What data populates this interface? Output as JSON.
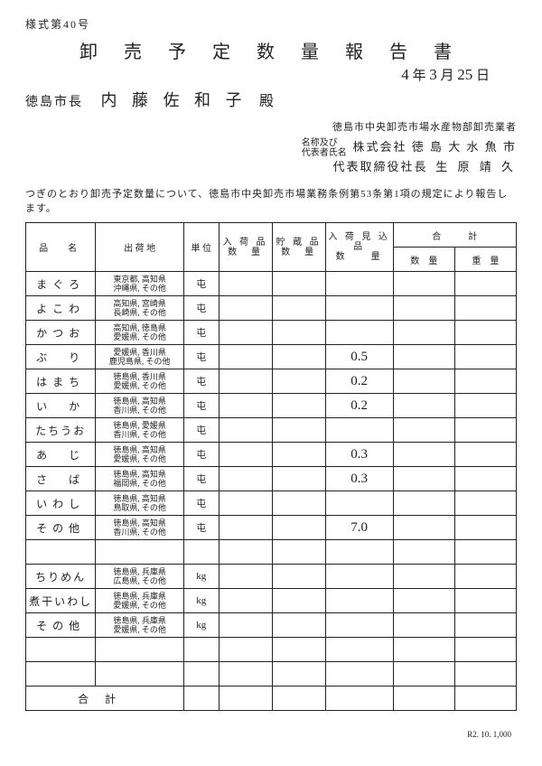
{
  "form_number": "様式第40号",
  "title": "卸 売 予 定 数 量 報 告 書",
  "date": {
    "year": "4",
    "month": "3",
    "day": "25",
    "year_suffix": "年",
    "month_suffix": "月",
    "day_suffix": "日"
  },
  "addressee": {
    "role": "徳島市長",
    "name": "内 藤  佐 和 子",
    "suffix": "殿"
  },
  "submitter": {
    "org_line": "徳島市中央卸売市場水産物部卸売業者",
    "name_label": "名称及び\n代表者氏名",
    "company": "株式会社 徳 島 大 水 魚 市",
    "rep_title": "代表取締役社長",
    "rep_name": "生 原  靖 久"
  },
  "intro": "つぎのとおり卸売予定数量について、徳島市中央卸売市場業務条例第53条第1項の規定により報告します。",
  "headers": {
    "item": "品　名",
    "origin": "出 荷 地",
    "unit": "単 位",
    "incoming": "入 荷 品\n数　量",
    "stored": "貯 蔵 品\n数　量",
    "expected": "入 荷 見 込 品\n数　　量",
    "total": "合　　　計",
    "qty": "数　量",
    "weight": "重　量"
  },
  "rows": [
    {
      "item": "まぐろ",
      "origin": "東京都, 高知県\n沖縄県, その他",
      "unit": "屯",
      "expected": ""
    },
    {
      "item": "よこわ",
      "origin": "高知県, 宮崎県\n長崎県, その他",
      "unit": "屯",
      "expected": ""
    },
    {
      "item": "かつお",
      "origin": "高知県, 徳島県\n愛媛県, その他",
      "unit": "屯",
      "expected": ""
    },
    {
      "item": "ぶ　り",
      "origin": "愛媛県, 香川県\n鹿児島県, その他",
      "unit": "屯",
      "expected": "0.5"
    },
    {
      "item": "はまち",
      "origin": "徳島県, 香川県\n愛媛県, その他",
      "unit": "屯",
      "expected": "0.2"
    },
    {
      "item": "い　か",
      "origin": "徳島県, 高知県\n香川県, その他",
      "unit": "屯",
      "expected": "0.2"
    },
    {
      "item": "たちうお",
      "origin": "徳島県, 愛媛県\n香川県, その他",
      "unit": "屯",
      "expected": ""
    },
    {
      "item": "あ　じ",
      "origin": "徳島県, 高知県\n愛媛県, その他",
      "unit": "屯",
      "expected": "0.3"
    },
    {
      "item": "さ　ば",
      "origin": "徳島県, 高知県\n福岡県, その他",
      "unit": "屯",
      "expected": "0.3"
    },
    {
      "item": "いわし",
      "origin": "徳島県, 高知県\n鳥取県, その他",
      "unit": "屯",
      "expected": ""
    },
    {
      "item": "その他",
      "origin": "徳島県, 高知県\n香川県, その他",
      "unit": "屯",
      "expected": "7.0"
    },
    {
      "item": "",
      "origin": "",
      "unit": "",
      "expected": ""
    },
    {
      "item": "ちりめん",
      "origin": "徳島県, 兵庫県\n広島県, その他",
      "unit": "kg",
      "expected": ""
    },
    {
      "item": "煮干いわし",
      "origin": "徳島県, 兵庫県\n愛媛県, その他",
      "unit": "kg",
      "expected": ""
    },
    {
      "item": "その他",
      "origin": "徳島県, 兵庫県\n愛媛県, その他",
      "unit": "kg",
      "expected": ""
    },
    {
      "item": "",
      "origin": "",
      "unit": "",
      "expected": ""
    },
    {
      "item": "",
      "origin": "",
      "unit": "",
      "expected": ""
    }
  ],
  "total_label": "合計",
  "footer": "R2. 10. 1,000"
}
